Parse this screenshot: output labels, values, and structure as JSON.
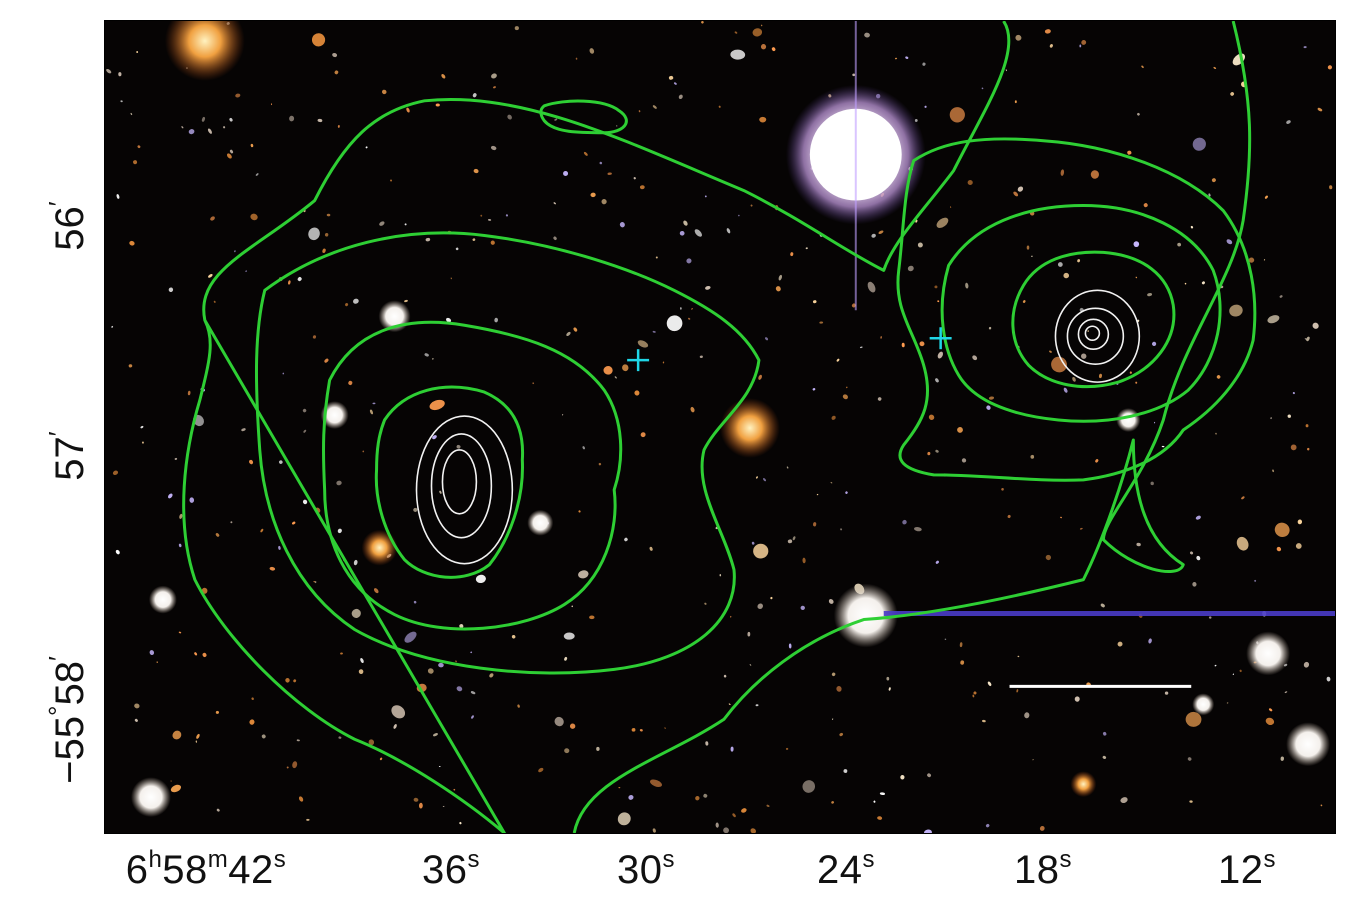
{
  "figure": {
    "x_axis": {
      "ticks": [
        {
          "h": "6",
          "h_unit": "h",
          "m": "58",
          "m_unit": "m",
          "s": "42",
          "s_unit": "s"
        },
        {
          "s": "36",
          "s_unit": "s"
        },
        {
          "s": "30",
          "s_unit": "s"
        },
        {
          "s": "24",
          "s_unit": "s"
        },
        {
          "s": "18",
          "s_unit": "s"
        },
        {
          "s": "12",
          "s_unit": "s"
        }
      ]
    },
    "y_axis": {
      "ticks": [
        {
          "deg": "",
          "min": "56",
          "arcmin_mark": "′"
        },
        {
          "deg": "",
          "min": "57",
          "arcmin_mark": "′"
        },
        {
          "deg": "−55",
          "deg_mark": "°",
          "min": "58",
          "arcmin_mark": "′"
        }
      ]
    },
    "colors": {
      "background": "#060404",
      "lensing_contours": "#2ecf34",
      "xray_contours": "#f2f2f2",
      "markers": "#1fd6e6",
      "scale_bar": "#ffffff"
    }
  }
}
